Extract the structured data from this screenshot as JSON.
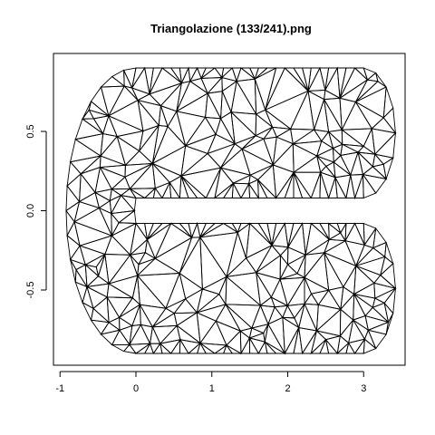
{
  "chart_data": {
    "type": "scatter",
    "title": "Triangolazione (133/241).png",
    "xlabel": "",
    "ylabel": "",
    "xlim": [
      -1.0,
      3.45
    ],
    "ylim": [
      -0.95,
      0.95
    ],
    "x_ticks": [
      -1,
      0,
      1,
      2,
      3
    ],
    "x_tick_labels": [
      "-1",
      "0",
      "1",
      "2",
      "3"
    ],
    "y_ticks": [
      -0.5,
      0.0,
      0.5
    ],
    "y_tick_labels": [
      "-0.5",
      "0.0",
      "0.5"
    ],
    "grid": false,
    "legend": "none",
    "shape": "U-shaped domain (horseshoe) covered by a triangular mesh",
    "mesh": {
      "description": "Approximate Delaunay-style triangulation of a horseshoe-shaped region: outer boundary x from -0.92 to 3.4, y from -0.9 to 0.9, inner slot from x≈0 to 3.0 between y≈-0.08 and 0.08",
      "outer_top_y": 0.9,
      "outer_bottom_y": -0.9,
      "left_x": -0.92,
      "right_x": 3.42,
      "slot_left_x": 0.0,
      "slot_right_x": 3.0,
      "slot_top_y": 0.08,
      "slot_bottom_y": -0.08
    }
  }
}
